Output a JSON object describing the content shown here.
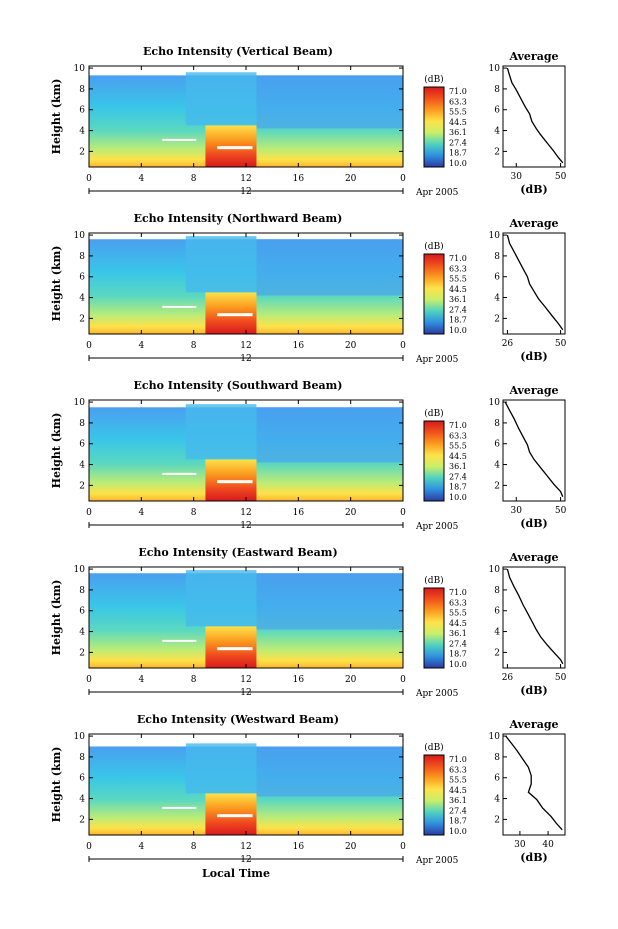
{
  "figure": {
    "xlabel": "Local Time",
    "date_label": "Apr 2005",
    "colorbar": {
      "unit": "(dB)",
      "levels": [
        "71.0",
        "63.3",
        "55.5",
        "44.5",
        "36.1",
        "27.4",
        "18.7",
        "10.0"
      ],
      "colors": [
        "#d7191c",
        "#f2521c",
        "#fb9c1e",
        "#fee34a",
        "#c8ef6a",
        "#4fd2c0",
        "#2f8fe0",
        "#2b3a9e"
      ]
    }
  },
  "chart_data": [
    {
      "type": "heatmap",
      "title": "Echo Intensity (Vertical Beam)",
      "ylabel": "Height (km)",
      "xlabel": "Local Time",
      "x_ticks": [
        "0",
        "4",
        "8",
        "12",
        "16",
        "20",
        "0"
      ],
      "x_sublabel": "12",
      "y_ticks": [
        "2",
        "4",
        "6",
        "8",
        "10"
      ],
      "xlim": [
        0,
        24
      ],
      "ylim": [
        0.5,
        10.2
      ],
      "colorbar_range": [
        10.0,
        71.0
      ],
      "profile": {
        "title": "Average",
        "xlabel": "(dB)",
        "x_ticks": [
          "30",
          "50"
        ],
        "y_ticks": [
          "2",
          "4",
          "6",
          "8",
          "10"
        ],
        "xlim": [
          24,
          52
        ],
        "ylim": [
          0.5,
          10.2
        ],
        "x": [
          26,
          27,
          28,
          30,
          32,
          34,
          36,
          37,
          39,
          41,
          44,
          47,
          49,
          51
        ],
        "y": [
          10,
          9.3,
          8.6,
          7.9,
          7.1,
          6.3,
          5.6,
          4.9,
          4.2,
          3.6,
          2.8,
          2.0,
          1.4,
          0.9
        ]
      }
    },
    {
      "type": "heatmap",
      "title": "Echo Intensity (Northward Beam)",
      "ylabel": "Height (km)",
      "xlabel": "Local Time",
      "x_ticks": [
        "0",
        "4",
        "8",
        "12",
        "16",
        "20",
        "0"
      ],
      "x_sublabel": "12",
      "y_ticks": [
        "2",
        "4",
        "6",
        "8",
        "10"
      ],
      "xlim": [
        0,
        24
      ],
      "ylim": [
        0.5,
        10.2
      ],
      "colorbar_range": [
        10.0,
        71.0
      ],
      "profile": {
        "title": "Average",
        "xlabel": "(dB)",
        "x_ticks": [
          "26",
          "50"
        ],
        "y_ticks": [
          "2",
          "4",
          "6",
          "8",
          "10"
        ],
        "xlim": [
          24,
          52
        ],
        "ylim": [
          0.5,
          10.2
        ],
        "x": [
          26,
          27,
          29,
          31,
          33,
          35,
          36,
          38,
          40,
          43,
          46,
          49,
          51
        ],
        "y": [
          10,
          9.2,
          8.4,
          7.6,
          6.8,
          6.0,
          5.3,
          4.6,
          3.9,
          3.1,
          2.3,
          1.5,
          0.9
        ]
      }
    },
    {
      "type": "heatmap",
      "title": "Echo Intensity (Southward Beam)",
      "ylabel": "Height (km)",
      "xlabel": "Local Time",
      "x_ticks": [
        "0",
        "4",
        "8",
        "12",
        "16",
        "20",
        "0"
      ],
      "x_sublabel": "12",
      "y_ticks": [
        "2",
        "4",
        "6",
        "8",
        "10"
      ],
      "xlim": [
        0,
        24
      ],
      "ylim": [
        0.5,
        10.2
      ],
      "colorbar_range": [
        10.0,
        71.0
      ],
      "profile": {
        "title": "Average",
        "xlabel": "(dB)",
        "x_ticks": [
          "30",
          "50"
        ],
        "y_ticks": [
          "2",
          "4",
          "6",
          "8",
          "10"
        ],
        "xlim": [
          24,
          52
        ],
        "ylim": [
          0.5,
          10.2
        ],
        "x": [
          25,
          27,
          29,
          31,
          33,
          35,
          36,
          38,
          41,
          44,
          47,
          50,
          51
        ],
        "y": [
          10,
          9.2,
          8.4,
          7.5,
          6.7,
          5.9,
          5.2,
          4.5,
          3.7,
          2.9,
          2.1,
          1.4,
          0.9
        ]
      }
    },
    {
      "type": "heatmap",
      "title": "Echo Intensity (Eastward Beam)",
      "ylabel": "Height (km)",
      "xlabel": "Local Time",
      "x_ticks": [
        "0",
        "4",
        "8",
        "12",
        "16",
        "20",
        "0"
      ],
      "x_sublabel": "12",
      "y_ticks": [
        "2",
        "4",
        "6",
        "8",
        "10"
      ],
      "xlim": [
        0,
        24
      ],
      "ylim": [
        0.5,
        10.2
      ],
      "colorbar_range": [
        10.0,
        71.0
      ],
      "profile": {
        "title": "Average",
        "xlabel": "(dB)",
        "x_ticks": [
          "26",
          "50"
        ],
        "y_ticks": [
          "2",
          "4",
          "6",
          "8",
          "10"
        ],
        "xlim": [
          24,
          52
        ],
        "ylim": [
          0.5,
          10.2
        ],
        "x": [
          26,
          27,
          29,
          31,
          33,
          35,
          37,
          39,
          41,
          44,
          47,
          50,
          51
        ],
        "y": [
          10,
          9.2,
          8.3,
          7.5,
          6.6,
          5.8,
          5.0,
          4.2,
          3.5,
          2.7,
          2.0,
          1.3,
          0.9
        ]
      }
    },
    {
      "type": "heatmap",
      "title": "Echo Intensity (Westward Beam)",
      "ylabel": "Height (km)",
      "xlabel": "Local Time",
      "x_ticks": [
        "0",
        "4",
        "8",
        "12",
        "16",
        "20",
        "0"
      ],
      "x_sublabel": "12",
      "y_ticks": [
        "2",
        "4",
        "6",
        "8",
        "10"
      ],
      "xlim": [
        0,
        24
      ],
      "ylim": [
        0.5,
        10.2
      ],
      "colorbar_range": [
        10.0,
        71.0
      ],
      "profile": {
        "title": "Average",
        "xlabel": "(dB)",
        "x_ticks": [
          "30",
          "40"
        ],
        "y_ticks": [
          "2",
          "4",
          "6",
          "8",
          "10"
        ],
        "xlim": [
          24,
          46
        ],
        "ylim": [
          0.5,
          10.2
        ],
        "x": [
          25,
          27,
          29,
          31,
          33,
          34,
          34,
          33,
          36,
          38,
          41,
          43,
          45
        ],
        "y": [
          10,
          9.3,
          8.6,
          7.8,
          7.0,
          6.2,
          5.4,
          4.6,
          3.9,
          3.1,
          2.3,
          1.6,
          1.0
        ]
      }
    }
  ]
}
